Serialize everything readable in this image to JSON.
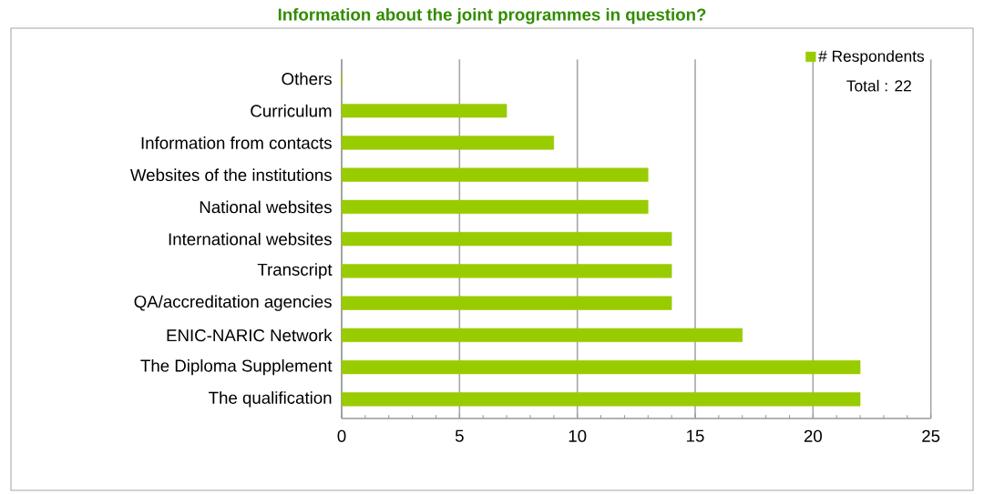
{
  "chart_data": {
    "type": "bar",
    "orientation": "horizontal",
    "title": "Information about the joint programmes in question?",
    "categories": [
      "Others",
      "Curriculum",
      "Information from contacts",
      "Websites of the institutions",
      "National websites",
      "International websites",
      "Transcript",
      "QA/accreditation agencies",
      "ENIC-NARIC Network",
      "The Diploma Supplement",
      "The qualification"
    ],
    "series": [
      {
        "name": "# Respondents",
        "color": "#99cc00",
        "values": [
          0,
          7,
          9,
          13,
          13,
          14,
          14,
          14,
          17,
          22,
          22
        ]
      }
    ],
    "xlim": [
      0,
      25
    ],
    "xticks": [
      0,
      5,
      10,
      15,
      20,
      25
    ],
    "grid": "x",
    "legend": "top right",
    "annotations": [
      "Total : 22"
    ]
  }
}
